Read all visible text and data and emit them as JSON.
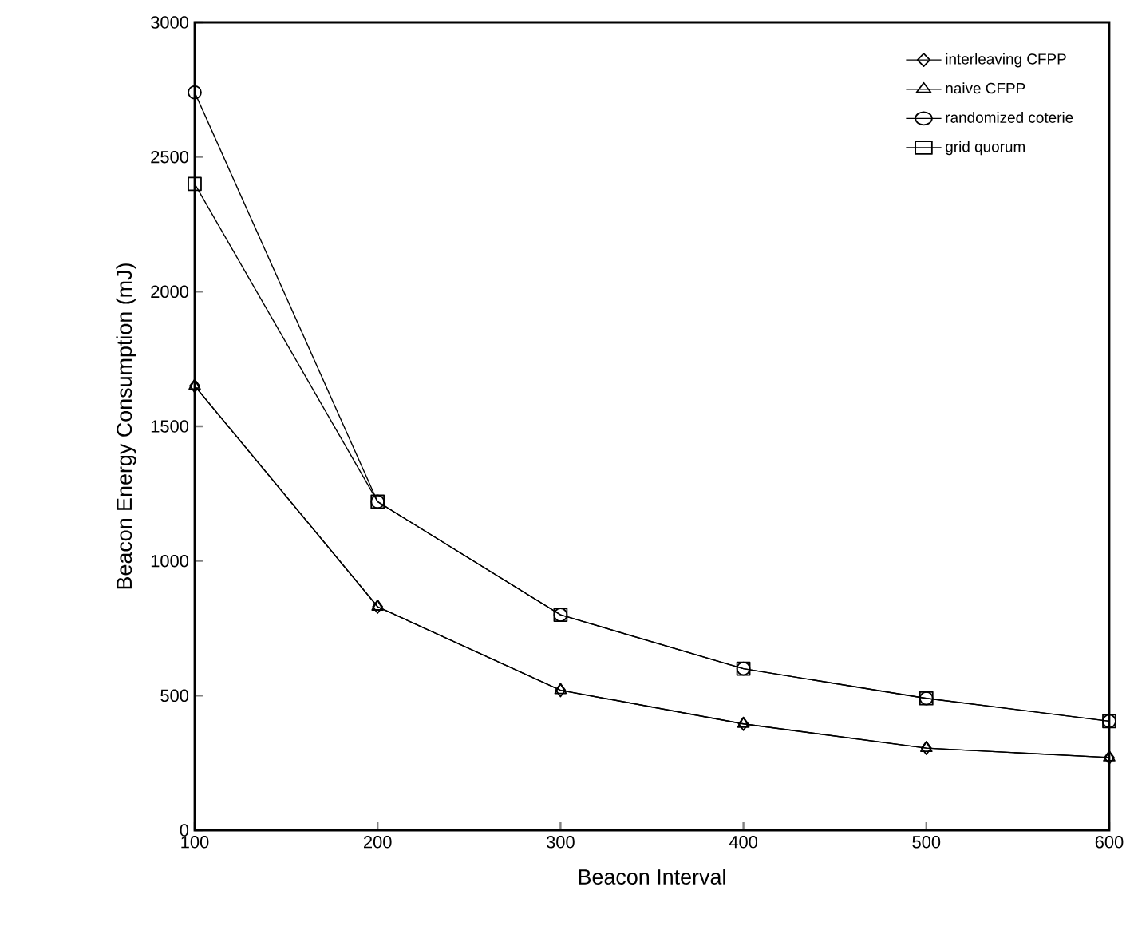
{
  "chart_data": {
    "type": "line",
    "xlabel": "Beacon Interval",
    "ylabel": "Beacon Energy Consumption (mJ)",
    "x": [
      100,
      200,
      300,
      400,
      500,
      600
    ],
    "series": [
      {
        "name": "interleaving CFPP",
        "color": "#000000",
        "marker": "diamond",
        "values": [
          1650,
          830,
          520,
          395,
          305,
          270
        ]
      },
      {
        "name": "naive CFPP",
        "color": "#000000",
        "marker": "triangle",
        "values": [
          1650,
          830,
          520,
          395,
          305,
          270
        ]
      },
      {
        "name": "randomized coterie",
        "color": "#000000",
        "marker": "circle",
        "values": [
          2740,
          1220,
          800,
          600,
          490,
          405
        ]
      },
      {
        "name": "grid quorum",
        "color": "#000000",
        "marker": "square",
        "values": [
          2400,
          1220,
          800,
          600,
          490,
          405
        ]
      }
    ],
    "xlim": [
      100,
      600
    ],
    "xticks": [
      100,
      200,
      300,
      400,
      500,
      600
    ],
    "ylim": [
      0,
      3000
    ],
    "yticks": [
      0,
      500,
      1000,
      1500,
      2000,
      2500,
      3000
    ],
    "grid": false,
    "legend": "top right",
    "line_style": "solid"
  }
}
